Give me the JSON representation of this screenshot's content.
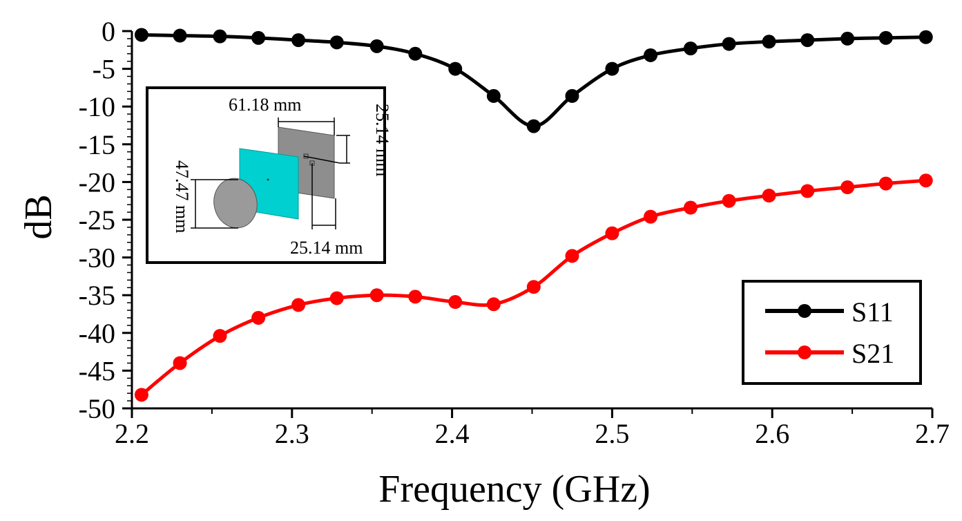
{
  "chart_data": {
    "type": "line",
    "title": "",
    "xlabel": "Frequency (GHz)",
    "ylabel": "dB",
    "xlim": [
      2.2,
      2.7
    ],
    "ylim": [
      -50,
      0
    ],
    "xticks": [
      2.2,
      2.3,
      2.4,
      2.5,
      2.6,
      2.7
    ],
    "xtick_labels": [
      "2.2",
      "2.3",
      "2.4",
      "2.5",
      "2.6",
      "2.7"
    ],
    "yticks": [
      0,
      -5,
      -10,
      -15,
      -20,
      -25,
      -30,
      -35,
      -40,
      -45,
      -50
    ],
    "ytick_labels": [
      "0",
      "-5",
      "-10",
      "-15",
      "-20",
      "-25",
      "-30",
      "-35",
      "-40",
      "-45",
      "-50"
    ],
    "x": [
      2.206,
      2.23,
      2.255,
      2.279,
      2.304,
      2.328,
      2.353,
      2.377,
      2.402,
      2.426,
      2.451,
      2.475,
      2.5,
      2.524,
      2.549,
      2.573,
      2.598,
      2.622,
      2.647,
      2.671,
      2.696
    ],
    "series": [
      {
        "name": "S11",
        "color": "#000000",
        "values": [
          -0.5,
          -0.6,
          -0.7,
          -0.9,
          -1.2,
          -1.5,
          -2.0,
          -3.0,
          -5.0,
          -8.6,
          -12.6,
          -8.6,
          -5.0,
          -3.2,
          -2.3,
          -1.7,
          -1.4,
          -1.2,
          -1.0,
          -0.9,
          -0.8
        ]
      },
      {
        "name": "S21",
        "color": "#ff0000",
        "values": [
          -48.2,
          -44.0,
          -40.4,
          -38.0,
          -36.3,
          -35.4,
          -35.0,
          -35.2,
          -35.9,
          -36.2,
          -33.9,
          -29.8,
          -26.8,
          -24.6,
          -23.4,
          -22.5,
          -21.8,
          -21.2,
          -20.7,
          -20.2,
          -19.8
        ]
      }
    ],
    "legend": {
      "position": "bottom-right",
      "entries": [
        "S11",
        "S21"
      ]
    },
    "grid": false,
    "inset": {
      "dimensions": [
        "61.18 mm",
        "25.14 mm",
        "47.47 mm",
        "25.14 mm"
      ],
      "colors": {
        "substrate": "#00d0d0",
        "reflector": "#a0a0a0"
      }
    }
  }
}
